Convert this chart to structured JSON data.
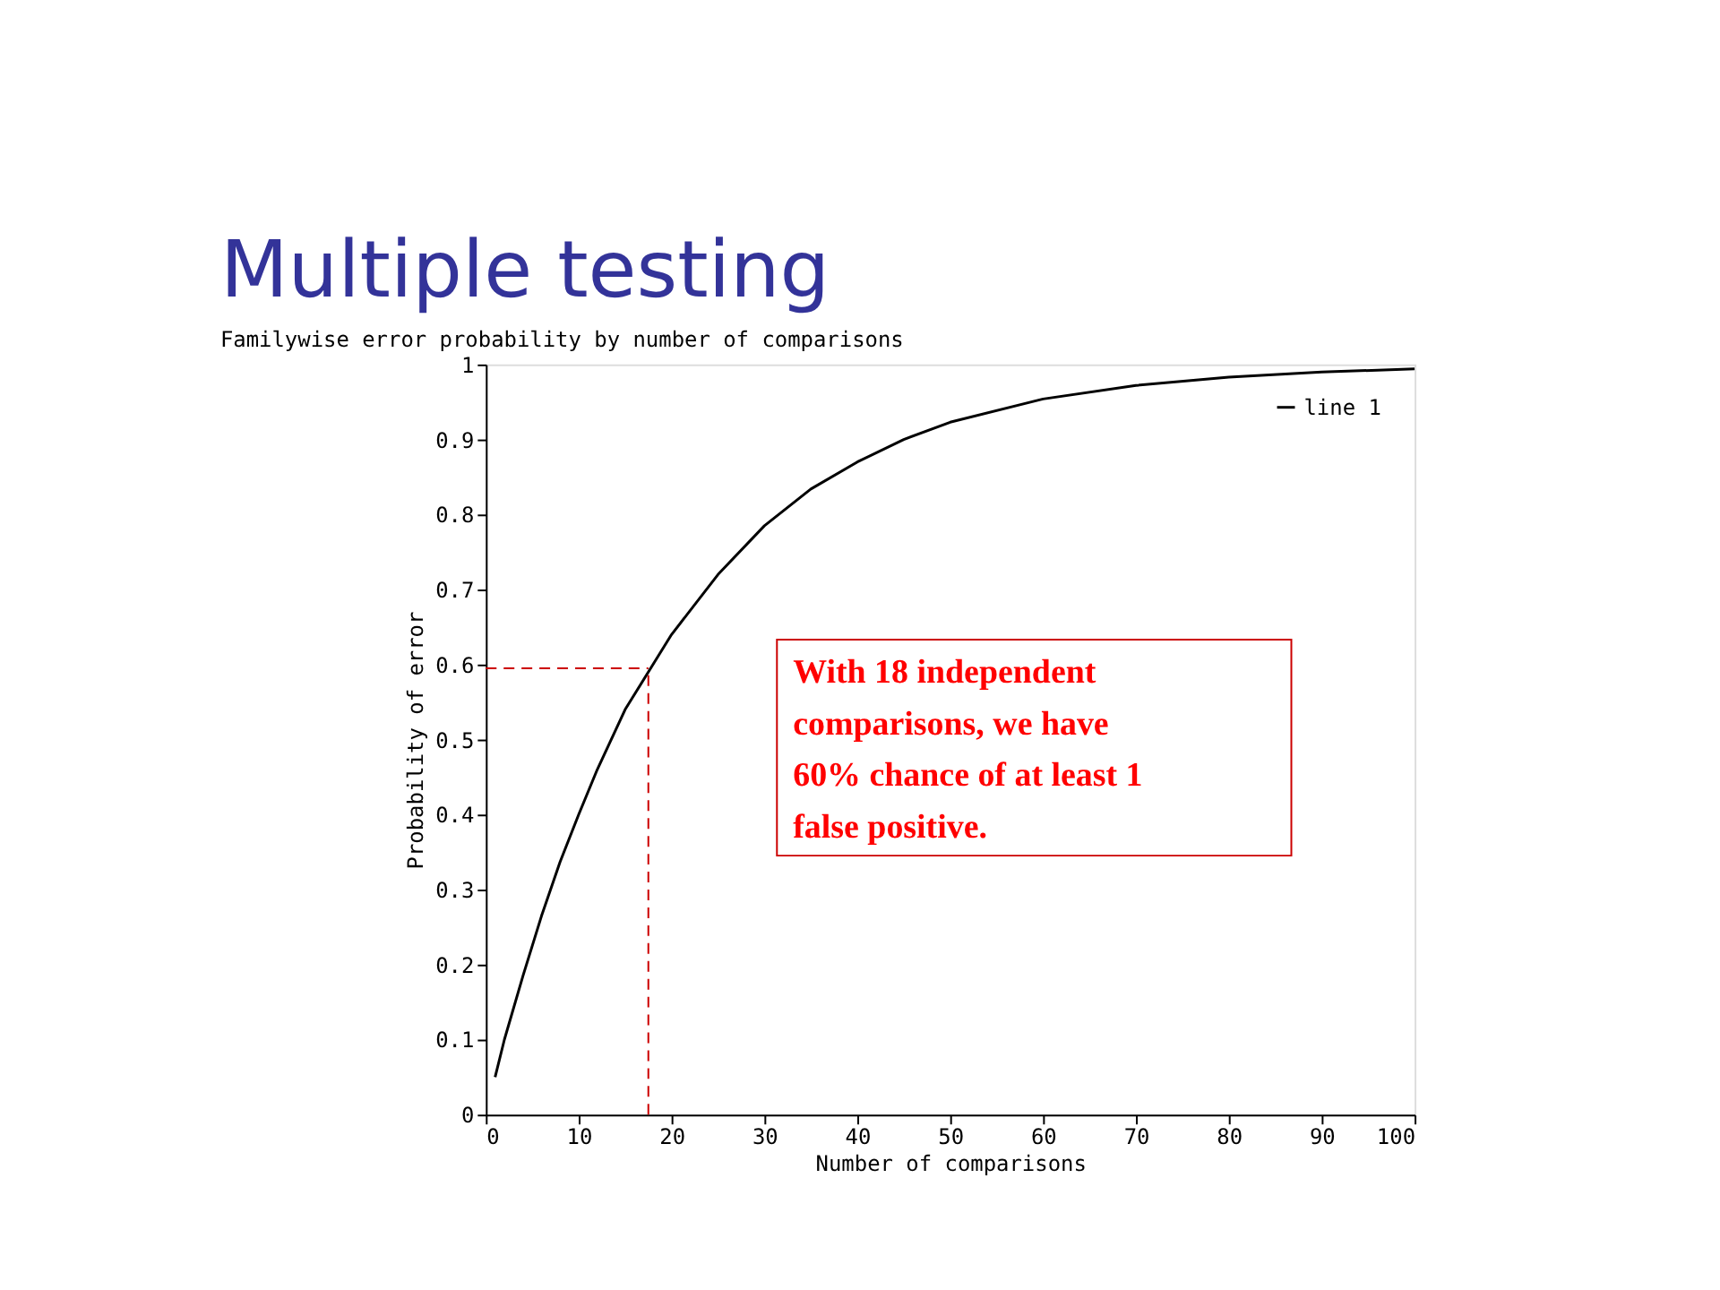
{
  "chart_data": {
    "type": "line",
    "title": "Multiple testing",
    "subtitle": "Familywise error probability by number of comparisons",
    "xlabel": "Number of comparisons",
    "ylabel": "Probability of error",
    "series": [
      {
        "name": "line 1",
        "color": "#000000",
        "x": [
          1,
          2,
          4,
          6,
          8,
          10,
          12,
          15,
          18,
          20,
          25,
          30,
          35,
          40,
          45,
          50,
          60,
          70,
          80,
          90,
          100
        ],
        "values": [
          0.05,
          0.1,
          0.185,
          0.265,
          0.337,
          0.4,
          0.46,
          0.54,
          0.6,
          0.64,
          0.72,
          0.785,
          0.834,
          0.87,
          0.9,
          0.923,
          0.954,
          0.972,
          0.983,
          0.99,
          0.994
        ]
      }
    ],
    "xlim": [
      0,
      100
    ],
    "xticks": [
      0,
      10,
      20,
      30,
      40,
      50,
      60,
      70,
      80,
      90,
      100
    ],
    "ylim": [
      0,
      1
    ],
    "yticks": [
      0,
      0.1,
      0.2,
      0.3,
      0.4,
      0.5,
      0.6,
      0.7,
      0.8,
      0.9,
      1
    ],
    "ref_lines": [
      {
        "axis": "x",
        "value": 17.5,
        "color": "#cc0000",
        "line_style": "dashed"
      },
      {
        "axis": "y",
        "value": 0.595,
        "color": "#cc0000",
        "line_style": "dashed"
      }
    ],
    "annotations": [
      "With 18 independent\ncomparisons, we have\n60% chance of at least 1\nfalse positive."
    ],
    "legend": "top right",
    "grid": false,
    "line_style": "solid",
    "marker": "none"
  }
}
